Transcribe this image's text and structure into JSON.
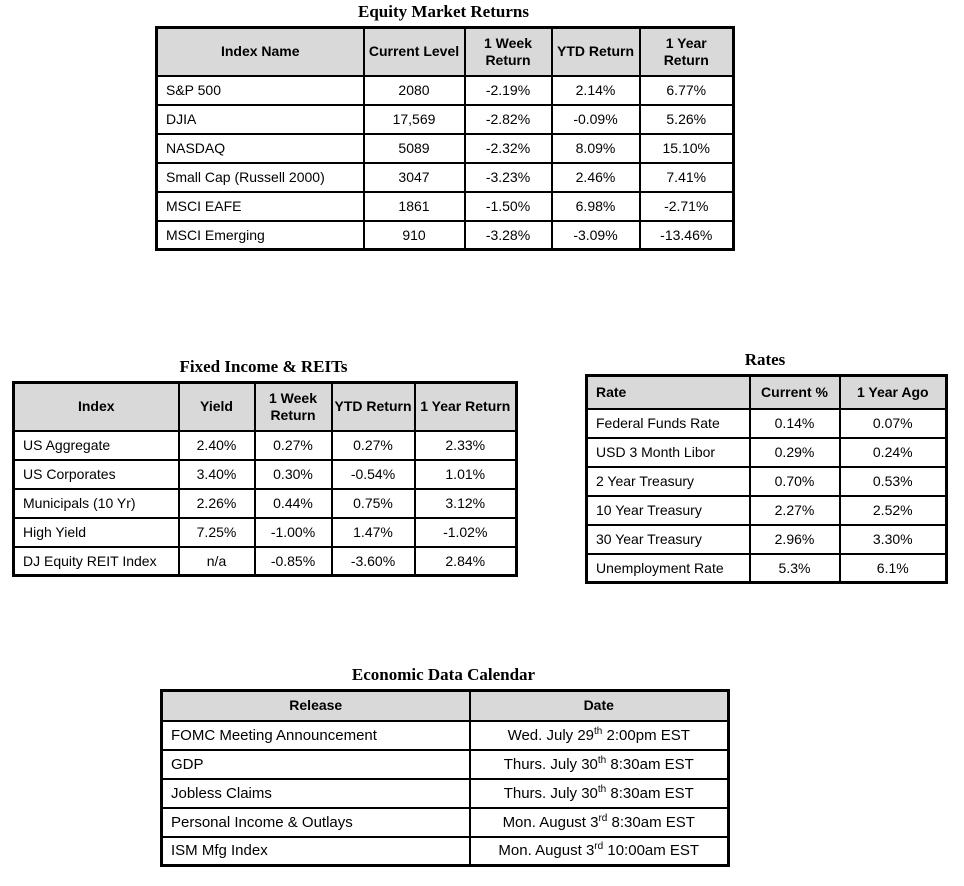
{
  "colors": {
    "header_bg": "#d9d9d9",
    "border": "#000000"
  },
  "equity": {
    "title": "Equity Market Returns",
    "columns": [
      "Index Name",
      "Current Level",
      "1 Week Return",
      "YTD Return",
      "1 Year Return"
    ],
    "rows": [
      [
        "S&P 500",
        "2080",
        "-2.19%",
        "2.14%",
        "6.77%"
      ],
      [
        "DJIA",
        "17,569",
        "-2.82%",
        "-0.09%",
        "5.26%"
      ],
      [
        "NASDAQ",
        "5089",
        "-2.32%",
        "8.09%",
        "15.10%"
      ],
      [
        "Small Cap (Russell 2000)",
        "3047",
        "-3.23%",
        "2.46%",
        "7.41%"
      ],
      [
        "MSCI EAFE",
        "1861",
        "-1.50%",
        "6.98%",
        "-2.71%"
      ],
      [
        "MSCI Emerging",
        "910",
        "-3.28%",
        "-3.09%",
        "-13.46%"
      ]
    ]
  },
  "fixed_income": {
    "title": "Fixed Income & REITs",
    "columns": [
      "Index",
      "Yield",
      "1 Week Return",
      "YTD Return",
      "1 Year Return"
    ],
    "rows": [
      [
        "US Aggregate",
        "2.40%",
        "0.27%",
        "0.27%",
        "2.33%"
      ],
      [
        "US Corporates",
        "3.40%",
        "0.30%",
        "-0.54%",
        "1.01%"
      ],
      [
        "Municipals (10 Yr)",
        "2.26%",
        "0.44%",
        "0.75%",
        "3.12%"
      ],
      [
        "High Yield",
        "7.25%",
        "-1.00%",
        "1.47%",
        "-1.02%"
      ],
      [
        "DJ Equity REIT Index",
        "n/a",
        "-0.85%",
        "-3.60%",
        "2.84%"
      ]
    ]
  },
  "rates": {
    "title": "Rates",
    "columns": [
      "Rate",
      "Current %",
      "1 Year Ago"
    ],
    "rows": [
      [
        "Federal Funds Rate",
        "0.14%",
        "0.07%"
      ],
      [
        "USD 3 Month Libor",
        "0.29%",
        "0.24%"
      ],
      [
        "2 Year Treasury",
        "0.70%",
        "0.53%"
      ],
      [
        "10 Year Treasury",
        "2.27%",
        "2.52%"
      ],
      [
        "30 Year Treasury",
        "2.96%",
        "3.30%"
      ],
      [
        "Unemployment Rate",
        "5.3%",
        "6.1%"
      ]
    ]
  },
  "calendar": {
    "title": "Economic Data Calendar",
    "columns": [
      "Release",
      "Date"
    ],
    "rows": [
      [
        "FOMC Meeting Announcement",
        [
          {
            "t": "Wed. July 29"
          },
          {
            "t": "th",
            "sup": true
          },
          {
            "t": " 2:00pm EST"
          }
        ]
      ],
      [
        "GDP",
        [
          {
            "t": "Thurs. July 30"
          },
          {
            "t": "th",
            "sup": true
          },
          {
            "t": " 8:30am EST"
          }
        ]
      ],
      [
        "Jobless Claims",
        [
          {
            "t": "Thurs. July 30"
          },
          {
            "t": "th",
            "sup": true
          },
          {
            "t": " 8:30am EST"
          }
        ]
      ],
      [
        "Personal Income & Outlays",
        [
          {
            "t": "Mon. August 3"
          },
          {
            "t": "rd",
            "sup": true
          },
          {
            "t": " 8:30am EST"
          }
        ]
      ],
      [
        "ISM Mfg Index",
        [
          {
            "t": "Mon. August 3"
          },
          {
            "t": "rd",
            "sup": true
          },
          {
            "t": " 10:00am EST"
          }
        ]
      ]
    ]
  }
}
